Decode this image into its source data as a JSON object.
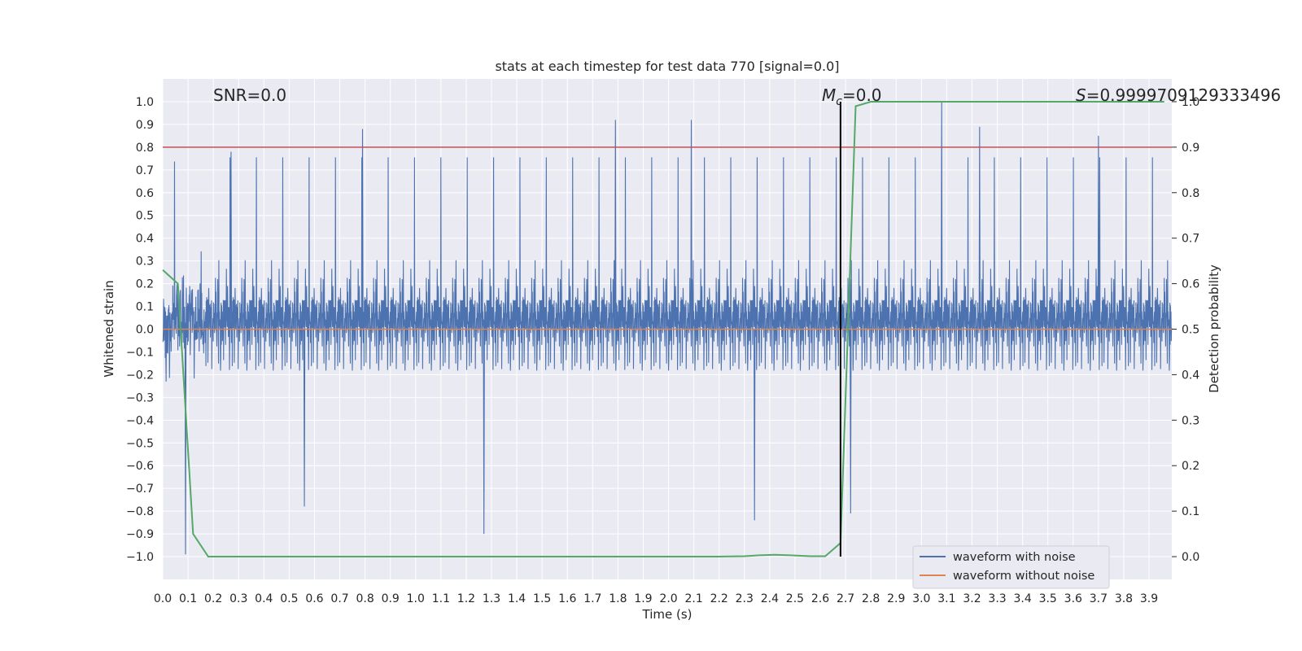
{
  "chart_data": {
    "type": "line",
    "title": "stats at each timestep for test data 770 [signal=0.0]",
    "xlabel": "Time (s)",
    "ylabel": "Whitened strain",
    "y2label": "Detection probability",
    "xlim": [
      0.0,
      3.99
    ],
    "ylim": [
      -1.1,
      1.1
    ],
    "y2lim": [
      -0.05,
      1.05
    ],
    "xticks": [
      "0.0",
      "0.1",
      "0.2",
      "0.3",
      "0.4",
      "0.5",
      "0.6",
      "0.7",
      "0.8",
      "0.9",
      "1.0",
      "1.1",
      "1.2",
      "1.3",
      "1.4",
      "1.5",
      "1.6",
      "1.7",
      "1.8",
      "1.9",
      "2.0",
      "2.1",
      "2.2",
      "2.3",
      "2.4",
      "2.5",
      "2.6",
      "2.7",
      "2.8",
      "2.9",
      "3.0",
      "3.1",
      "3.2",
      "3.3",
      "3.4",
      "3.5",
      "3.6",
      "3.7",
      "3.8",
      "3.9"
    ],
    "yticks": [
      "1.0",
      "0.9",
      "0.8",
      "0.7",
      "0.6",
      "0.5",
      "0.4",
      "0.3",
      "0.2",
      "0.1",
      "0.0",
      "−0.1",
      "−0.2",
      "−0.3",
      "−0.4",
      "−0.5",
      "−0.6",
      "−0.7",
      "−0.8",
      "−0.9",
      "−1.0"
    ],
    "y2ticks": [
      "1.0",
      "0.9",
      "0.8",
      "0.7",
      "0.6",
      "0.5",
      "0.4",
      "0.3",
      "0.2",
      "0.1",
      "0.0"
    ],
    "annotations": {
      "snr": "SNR=0.0",
      "mc_symbol": "M",
      "mc_sub": "c",
      "mc_value": "=0.0",
      "s_symbol": "S",
      "s_value": "=0.9999709129333496"
    },
    "legend": {
      "position": "lower-right",
      "entries": [
        "waveform with noise",
        "waveform without noise"
      ]
    },
    "threshold_line": {
      "axis": "secondary",
      "value": 0.9,
      "color": "#c44e52"
    },
    "marker_line": {
      "x": 2.68,
      "y_from": -1.0,
      "y_to": 1.0,
      "color": "#000000"
    },
    "series": [
      {
        "name": "waveform with noise",
        "axis": "primary",
        "color": "#4c72b0",
        "description_note": "dense whitened noise, amplitude mostly within ±0.5 with spikes up to ±1.0",
        "spikes": [
          {
            "x": 0.09,
            "y": -0.99
          },
          {
            "x": 0.27,
            "y": 0.78
          },
          {
            "x": 0.79,
            "y": 0.88
          },
          {
            "x": 1.27,
            "y": -0.9
          },
          {
            "x": 1.79,
            "y": 0.92
          },
          {
            "x": 2.09,
            "y": 0.92
          },
          {
            "x": 2.34,
            "y": -0.84
          },
          {
            "x": 3.08,
            "y": 1.0
          },
          {
            "x": 3.23,
            "y": 0.89
          },
          {
            "x": 3.7,
            "y": 0.85
          },
          {
            "x": 0.56,
            "y": -0.78
          },
          {
            "x": 2.72,
            "y": -0.81
          }
        ]
      },
      {
        "name": "waveform without noise",
        "axis": "primary",
        "color": "#dd8452",
        "x": [
          0.0,
          3.99
        ],
        "y": [
          0.0,
          0.0
        ]
      },
      {
        "name": "detection probability",
        "axis": "secondary",
        "color": "#55a868",
        "x": [
          0.0,
          0.06,
          0.12,
          0.18,
          0.24,
          0.3,
          0.6,
          1.0,
          1.5,
          2.0,
          2.2,
          2.3,
          2.36,
          2.42,
          2.48,
          2.56,
          2.62,
          2.68,
          2.74,
          2.8,
          3.2,
          3.6,
          3.96
        ],
        "y": [
          0.63,
          0.6,
          0.05,
          0.0,
          0.0,
          0.0,
          0.0,
          0.0,
          0.0,
          0.0,
          0.0,
          0.001,
          0.003,
          0.004,
          0.003,
          0.001,
          0.001,
          0.03,
          0.99,
          1.0,
          1.0,
          1.0,
          1.0
        ]
      }
    ]
  }
}
